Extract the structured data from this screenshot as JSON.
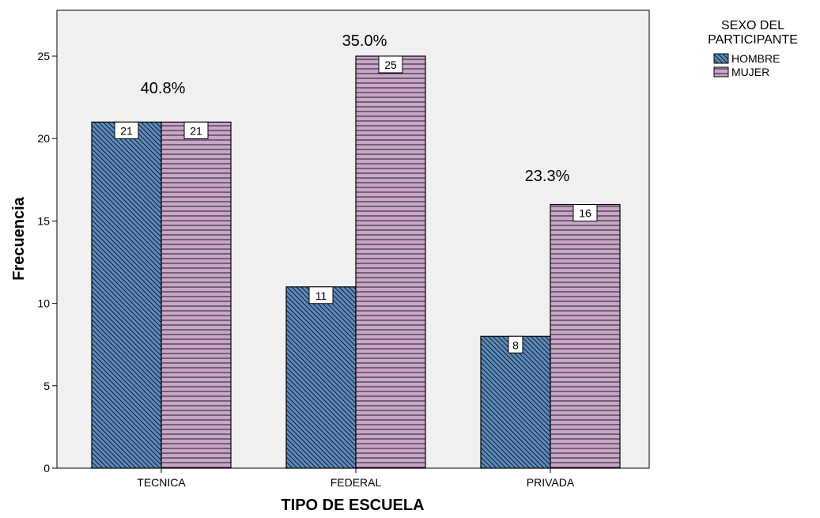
{
  "chart_data": {
    "type": "bar",
    "title": "",
    "xlabel": "TIPO DE ESCUELA",
    "ylabel": "Frecuencia",
    "categories": [
      "TECNICA",
      "FEDERAL",
      "PRIVADA"
    ],
    "series": [
      {
        "name": "HOMBRE",
        "values": [
          21,
          11,
          8
        ],
        "color": "#5b8cc1",
        "pattern": "diagonal"
      },
      {
        "name": "MUJER",
        "values": [
          21,
          25,
          16
        ],
        "color": "#c9a6c9",
        "pattern": "horizontal"
      }
    ],
    "group_labels": [
      "40.8%",
      "35.0%",
      "23.3%"
    ],
    "ylim": [
      0,
      27.5
    ],
    "yticks": [
      0,
      5,
      10,
      15,
      20,
      25
    ],
    "grid": false,
    "legend": {
      "title": "SEXO DEL PARTICIPANTE",
      "title_lines": [
        "SEXO DEL",
        "PARTICIPANTE"
      ],
      "placement": "right-top"
    },
    "plot_background": "#f0f0f0"
  }
}
